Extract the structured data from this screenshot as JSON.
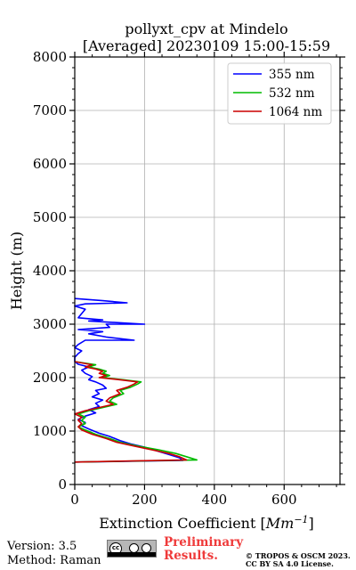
{
  "chart_data": {
    "type": "line",
    "title": "pollyxt_cpv at Mindelo",
    "subtitle": "[Averaged] 20230109 15:00-15:59",
    "xlabel_text": "Extinction Coefficient [",
    "xlabel_unit": "Mm",
    "xlabel_exp": "−1",
    "xlabel_close": "]",
    "ylabel": "Height (m)",
    "xlim": [
      0,
      760
    ],
    "ylim": [
      0,
      8000
    ],
    "x_ticks": [
      0,
      200,
      400,
      600
    ],
    "y_ticks": [
      0,
      1000,
      2000,
      3000,
      4000,
      5000,
      6000,
      7000,
      8000
    ],
    "x_tick_labels": [
      "0",
      "200",
      "400",
      "600"
    ],
    "y_tick_labels": [
      "0",
      "1000",
      "2000",
      "3000",
      "4000",
      "5000",
      "6000",
      "7000",
      "8000"
    ],
    "grid": true,
    "legend_position": "top-right",
    "series": [
      {
        "name": "355 nm",
        "color": "#0000ff",
        "points": [
          [
            0,
            420
          ],
          [
            310,
            450
          ],
          [
            300,
            500
          ],
          [
            270,
            560
          ],
          [
            230,
            640
          ],
          [
            200,
            700
          ],
          [
            160,
            760
          ],
          [
            130,
            820
          ],
          [
            100,
            900
          ],
          [
            70,
            960
          ],
          [
            40,
            1040
          ],
          [
            20,
            1100
          ],
          [
            30,
            1160
          ],
          [
            10,
            1220
          ],
          [
            30,
            1280
          ],
          [
            60,
            1340
          ],
          [
            40,
            1400
          ],
          [
            70,
            1460
          ],
          [
            60,
            1520
          ],
          [
            80,
            1580
          ],
          [
            50,
            1640
          ],
          [
            70,
            1700
          ],
          [
            60,
            1760
          ],
          [
            90,
            1800
          ],
          [
            80,
            1860
          ],
          [
            60,
            1920
          ],
          [
            40,
            1960
          ],
          [
            50,
            2020
          ],
          [
            30,
            2080
          ],
          [
            20,
            2140
          ],
          [
            40,
            2200
          ],
          [
            10,
            2250
          ],
          [
            0,
            2300
          ],
          [
            0,
            2380
          ],
          [
            10,
            2450
          ],
          [
            20,
            2500
          ],
          [
            0,
            2560
          ],
          [
            10,
            2620
          ],
          [
            30,
            2700
          ],
          [
            170,
            2700
          ],
          [
            90,
            2760
          ],
          [
            40,
            2820
          ],
          [
            80,
            2860
          ],
          [
            10,
            2900
          ],
          [
            100,
            2940
          ],
          [
            90,
            3000
          ],
          [
            200,
            3000
          ],
          [
            40,
            3060
          ],
          [
            80,
            3080
          ],
          [
            10,
            3120
          ],
          [
            30,
            3280
          ],
          [
            0,
            3340
          ],
          [
            30,
            3380
          ],
          [
            150,
            3400
          ],
          [
            80,
            3440
          ],
          [
            0,
            3480
          ]
        ]
      },
      {
        "name": "532 nm",
        "color": "#00bb00",
        "points": [
          [
            0,
            420
          ],
          [
            350,
            460
          ],
          [
            320,
            520
          ],
          [
            290,
            580
          ],
          [
            240,
            650
          ],
          [
            180,
            720
          ],
          [
            130,
            790
          ],
          [
            100,
            860
          ],
          [
            60,
            940
          ],
          [
            30,
            1020
          ],
          [
            10,
            1080
          ],
          [
            30,
            1140
          ],
          [
            20,
            1200
          ],
          [
            30,
            1260
          ],
          [
            10,
            1320
          ],
          [
            40,
            1380
          ],
          [
            80,
            1440
          ],
          [
            120,
            1500
          ],
          [
            100,
            1560
          ],
          [
            110,
            1620
          ],
          [
            140,
            1700
          ],
          [
            130,
            1760
          ],
          [
            160,
            1820
          ],
          [
            180,
            1880
          ],
          [
            190,
            1920
          ],
          [
            140,
            1960
          ],
          [
            80,
            2000
          ],
          [
            100,
            2040
          ],
          [
            80,
            2080
          ],
          [
            90,
            2120
          ],
          [
            70,
            2160
          ],
          [
            40,
            2200
          ],
          [
            60,
            2240
          ],
          [
            0,
            2300
          ]
        ]
      },
      {
        "name": "1064 nm",
        "color": "#cc0000",
        "points": [
          [
            0,
            420
          ],
          [
            320,
            460
          ],
          [
            300,
            520
          ],
          [
            270,
            580
          ],
          [
            220,
            650
          ],
          [
            170,
            720
          ],
          [
            120,
            790
          ],
          [
            90,
            860
          ],
          [
            50,
            940
          ],
          [
            20,
            1020
          ],
          [
            10,
            1080
          ],
          [
            20,
            1140
          ],
          [
            10,
            1200
          ],
          [
            20,
            1260
          ],
          [
            0,
            1320
          ],
          [
            30,
            1380
          ],
          [
            70,
            1440
          ],
          [
            110,
            1500
          ],
          [
            90,
            1560
          ],
          [
            100,
            1620
          ],
          [
            130,
            1700
          ],
          [
            120,
            1760
          ],
          [
            150,
            1820
          ],
          [
            170,
            1880
          ],
          [
            180,
            1920
          ],
          [
            130,
            1960
          ],
          [
            70,
            2000
          ],
          [
            90,
            2040
          ],
          [
            70,
            2080
          ],
          [
            80,
            2120
          ],
          [
            60,
            2160
          ],
          [
            30,
            2200
          ],
          [
            50,
            2240
          ],
          [
            0,
            2300
          ]
        ]
      }
    ]
  },
  "footer": {
    "version": "Version: 3.5",
    "method": "Method: Raman",
    "badge_cc": "cc",
    "preliminary_line1": "Preliminary",
    "preliminary_line2": "Results.",
    "copyright_line1": "© TROPOS & OSCM 2023.",
    "copyright_line2": "CC BY SA 4.0 License."
  }
}
